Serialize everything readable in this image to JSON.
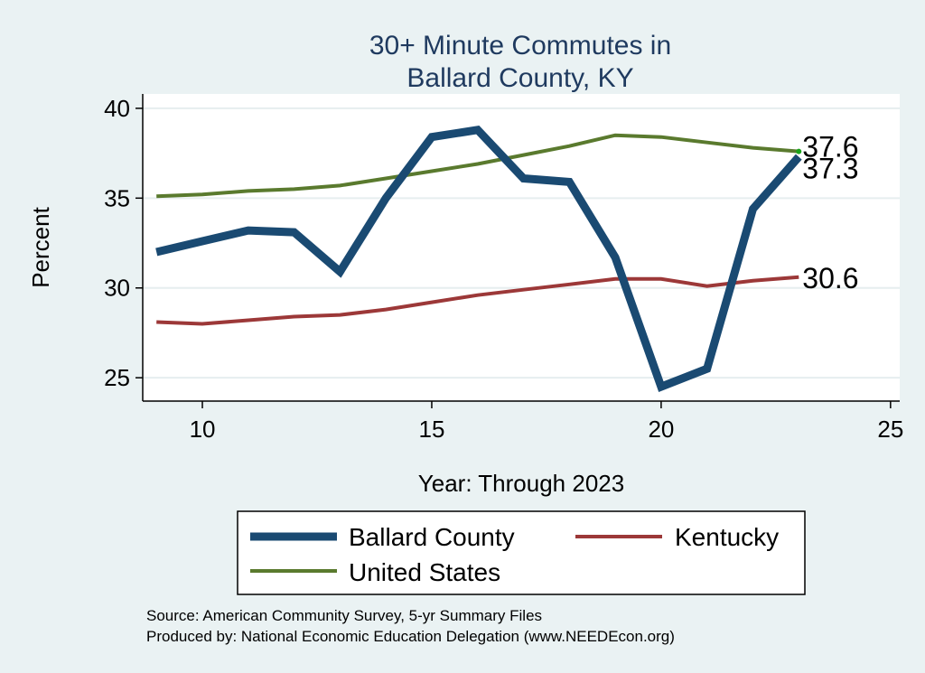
{
  "chart_data": {
    "type": "line",
    "title_lines": [
      "30+ Minute Commutes in",
      "Ballard County, KY"
    ],
    "xlabel": "Year: Through 2023",
    "ylabel": "Percent",
    "xlim": [
      8.7,
      25.2
    ],
    "ylim": [
      23.7,
      40.8
    ],
    "xticks": [
      10,
      15,
      20,
      25
    ],
    "yticks": [
      25,
      30,
      35,
      40
    ],
    "grid": true,
    "x": [
      9,
      10,
      11,
      12,
      13,
      14,
      15,
      16,
      17,
      18,
      19,
      20,
      21,
      22,
      23
    ],
    "series": [
      {
        "name": "Ballard County",
        "color": "#1a4a72",
        "width": 9,
        "values": [
          32.0,
          32.6,
          33.2,
          33.1,
          30.9,
          35.0,
          38.4,
          38.8,
          36.1,
          35.9,
          31.7,
          24.5,
          25.5,
          34.4,
          37.3
        ],
        "end_label": "37.3"
      },
      {
        "name": "Kentucky",
        "color": "#9c3838",
        "width": 4,
        "values": [
          28.1,
          28.0,
          28.2,
          28.4,
          28.5,
          28.8,
          29.2,
          29.6,
          29.9,
          30.2,
          30.5,
          30.5,
          30.1,
          30.4,
          30.6
        ],
        "end_label": "30.6"
      },
      {
        "name": "United States",
        "color": "#5a7a2e",
        "width": 4,
        "values": [
          35.1,
          35.2,
          35.4,
          35.5,
          35.7,
          36.1,
          36.5,
          36.9,
          37.4,
          37.9,
          38.5,
          38.4,
          38.1,
          37.8,
          37.6
        ],
        "end_label": "37.6"
      }
    ],
    "legend_position": "bottom"
  },
  "notes": {
    "source": "Source: American Community Survey, 5-yr Summary Files",
    "produced": "Produced by: National Economic Education Delegation (www.NEEDEcon.org)"
  }
}
